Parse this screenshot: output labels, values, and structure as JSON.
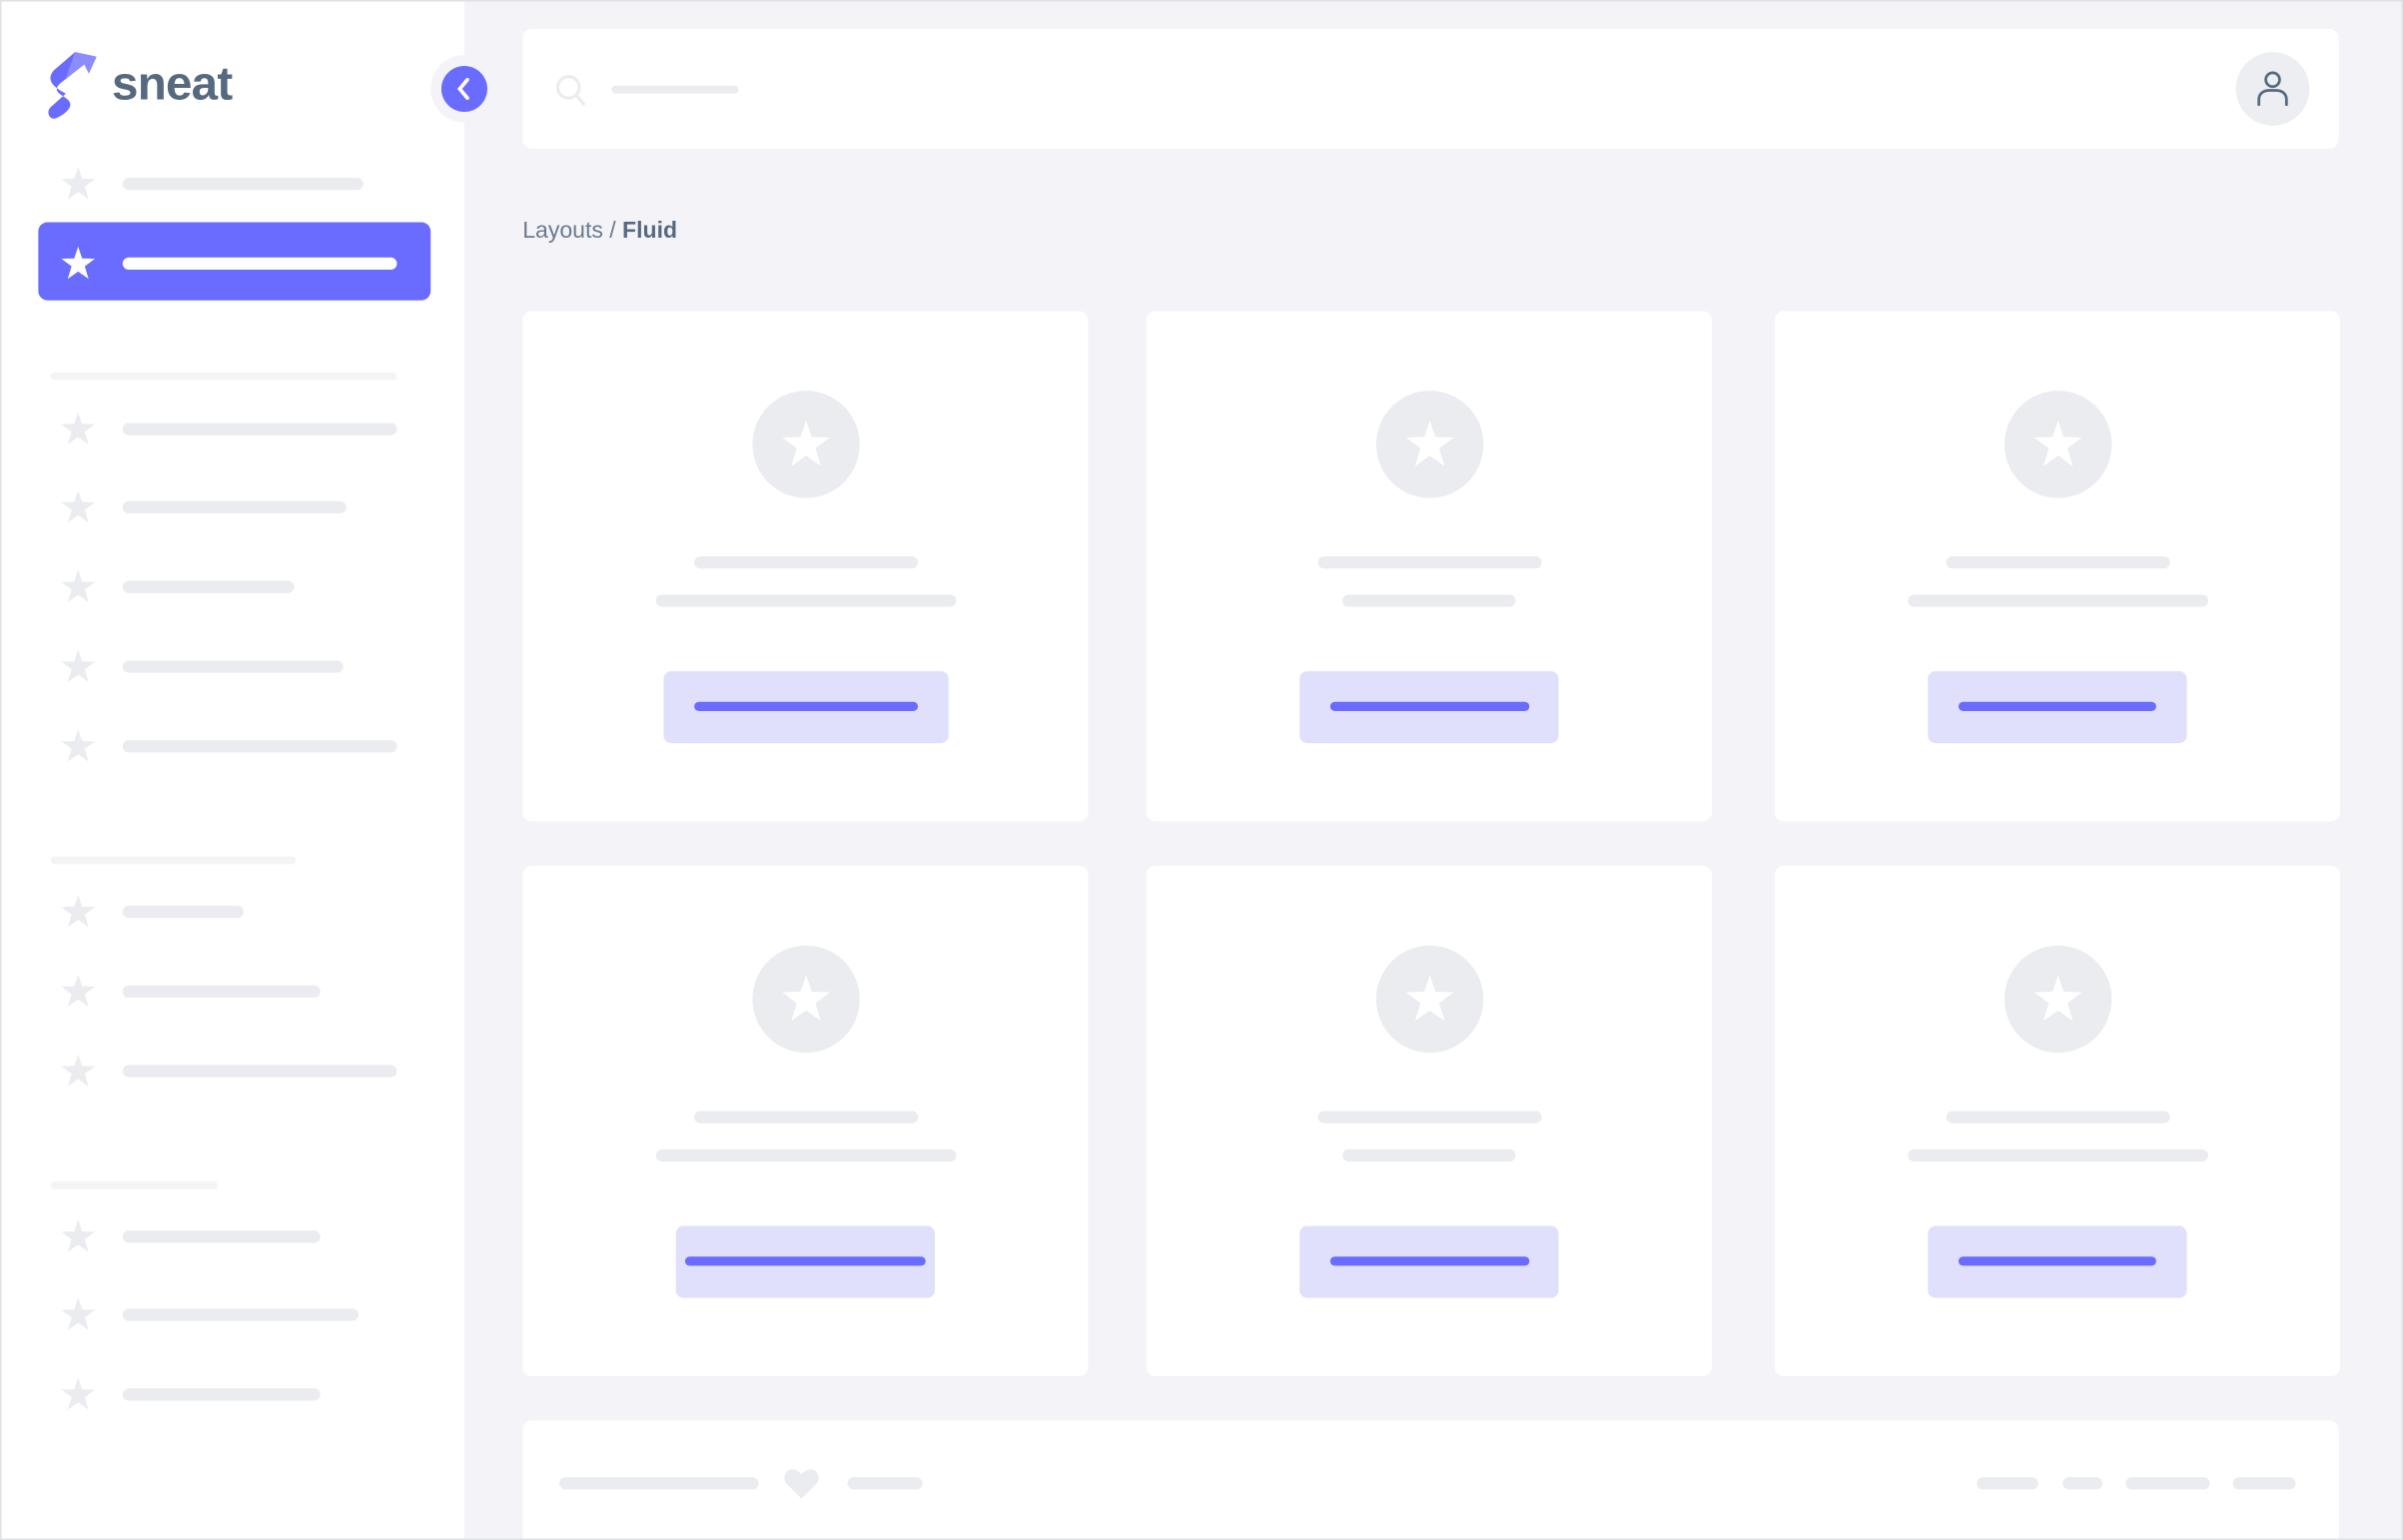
{
  "brand": {
    "name": "sneat",
    "logo_icon": "sneat-s-logo"
  },
  "colors": {
    "primary": "#696cff",
    "primary_light": "#e0e0fc",
    "skeleton": "#ebecef",
    "text": "#566a7f",
    "background": "#f4f4f8"
  },
  "sidebar": {
    "toggle_icon": "chevron-left-icon",
    "item_icon": "star-icon",
    "active_index": 1,
    "sections": [
      2,
      5,
      3,
      3
    ]
  },
  "navbar": {
    "search_icon": "search-icon",
    "user_icon": "user-icon"
  },
  "breadcrumb": {
    "parent": "Layouts",
    "separator": " / ",
    "current": "Fluid"
  },
  "cards": {
    "count": 6,
    "icon": "star-icon"
  },
  "footer": {
    "icon": "heart-icon"
  }
}
